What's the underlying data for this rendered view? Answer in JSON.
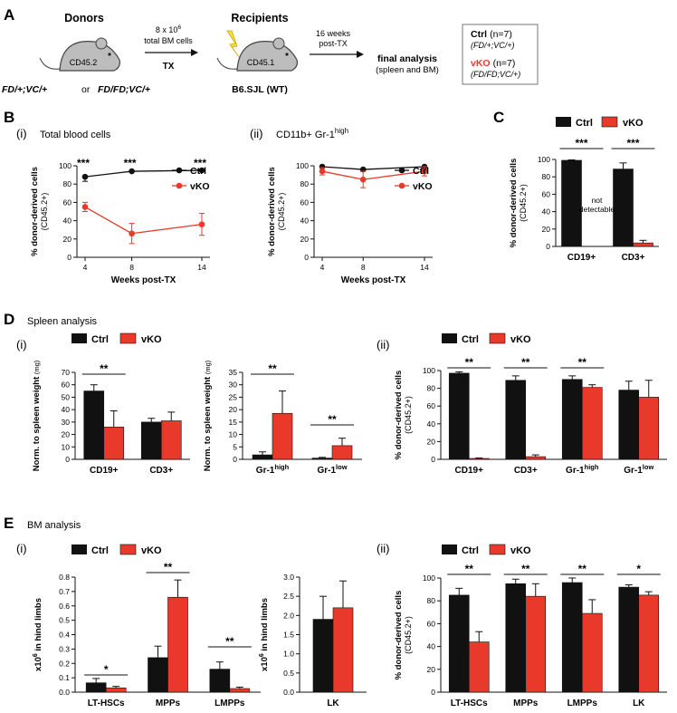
{
  "colors": {
    "ctrl": "#111111",
    "vko": "#e8392b"
  },
  "panels": {
    "A": "A",
    "B": "B",
    "C": "C",
    "D": "D",
    "E": "E"
  },
  "schematic": {
    "donors_title": "Donors",
    "donor_label": "CD45.2",
    "donor_genotype_1": "FD/+;VC/+",
    "donor_genotype_or": "or",
    "donor_genotype_2": "FD/FD;VC/+",
    "cells_line1": "8 x 10",
    "cells_exp": "6",
    "cells_line2": "total BM cells",
    "tx_label": "TX",
    "recipients_title": "Recipients",
    "recipient_label": "CD45.1",
    "recipient_strain": "B6.SJL (WT)",
    "weeks_line1": "16 weeks",
    "weeks_line2": "post-TX",
    "final_line1": "final analysis",
    "final_line2": "(spleen and BM)",
    "legend_ctrl": "Ctrl",
    "legend_ctrl_n": "(n=7)",
    "legend_ctrl_geno": "(FD/+;VC/+)",
    "legend_vko": "vKO",
    "legend_vko_n": "(n=7)",
    "legend_vko_geno": "(FD/FD;VC/+)"
  },
  "section_titles": {
    "B_i_roman": "(i)",
    "B_i": "Total blood cells",
    "B_ii_roman": "(ii)",
    "B_ii_a": "CD11b+  Gr-1",
    "B_ii_sup": "high",
    "D_title": "Spleen analysis",
    "E_title": "BM analysis",
    "D_i": "(i)",
    "D_ii": "(ii)",
    "E_i": "(i)",
    "E_ii": "(ii)"
  },
  "legend": {
    "ctrl": "Ctrl",
    "vko": "vKO"
  },
  "chart_data": [
    {
      "id": "B-i",
      "type": "line",
      "title": "Total blood cells",
      "xlabel": "Weeks post-TX",
      "ylabel": "% donor-derived cells",
      "ylabel2": "(CD45.2+)",
      "x": [
        4,
        8,
        14
      ],
      "ylim": [
        0,
        100
      ],
      "yticks": [
        "0",
        "20",
        "40",
        "60",
        "80",
        "100"
      ],
      "xticks": [
        "4",
        "8",
        "14"
      ],
      "series": [
        {
          "name": "Ctrl",
          "values": [
            88,
            94,
            95
          ],
          "errors": [
            5,
            1,
            1
          ]
        },
        {
          "name": "vKO",
          "values": [
            55,
            26,
            36
          ],
          "errors": [
            5,
            11,
            12
          ]
        }
      ],
      "annotations": [
        "***",
        "***",
        "***"
      ]
    },
    {
      "id": "B-ii",
      "type": "line",
      "xlabel": "Weeks post-TX",
      "ylabel": "% donor-derived cells",
      "ylabel2": "(CD45.2+)",
      "x": [
        4,
        8,
        14
      ],
      "ylim": [
        0,
        100
      ],
      "yticks": [
        "0",
        "20",
        "40",
        "60",
        "80",
        "100"
      ],
      "xticks": [
        "4",
        "8",
        "14"
      ],
      "series": [
        {
          "name": "Ctrl",
          "values": [
            99,
            96,
            99
          ],
          "errors": [
            1,
            2,
            1
          ]
        },
        {
          "name": "vKO",
          "values": [
            94,
            85,
            94
          ],
          "errors": [
            4,
            9,
            5
          ]
        }
      ]
    },
    {
      "id": "C",
      "type": "bar",
      "ylabel": "% donor-derived cells",
      "ylabel2": "(CD45.2+)",
      "categories": [
        "CD19+",
        "CD3+"
      ],
      "ylim": [
        0,
        100
      ],
      "yticks": [
        "0",
        "20",
        "40",
        "60",
        "80",
        "100"
      ],
      "series": [
        {
          "name": "Ctrl",
          "values": [
            99,
            89
          ],
          "errors": [
            0.5,
            7
          ]
        },
        {
          "name": "vKO",
          "values": [
            0,
            4
          ],
          "errors": [
            0,
            3
          ]
        }
      ],
      "annotations": [
        "***",
        "***"
      ],
      "note_line1": "not",
      "note_line2": "detectable"
    },
    {
      "id": "D-i-a",
      "type": "bar",
      "ylabel": "Norm. to spleen weight",
      "ylabel_unit": "(mg)",
      "categories": [
        "CD19+",
        "CD3+"
      ],
      "ylim": [
        0,
        70
      ],
      "yticks": [
        "0",
        "10",
        "20",
        "30",
        "40",
        "50",
        "60",
        "70"
      ],
      "series": [
        {
          "name": "Ctrl",
          "values": [
            55,
            30
          ],
          "errors": [
            5,
            3
          ]
        },
        {
          "name": "vKO",
          "values": [
            26,
            31
          ],
          "errors": [
            13,
            7
          ]
        }
      ],
      "annotations": [
        "**"
      ]
    },
    {
      "id": "D-i-b",
      "type": "bar",
      "ylabel": "Norm. to spleen weight",
      "ylabel_unit": "(mg)",
      "categories": [
        "Gr-1",
        "Gr-1"
      ],
      "category_sup": [
        "high",
        "low"
      ],
      "ylim": [
        0,
        35
      ],
      "yticks": [
        "0",
        "5",
        "10",
        "15",
        "20",
        "25",
        "30",
        "35"
      ],
      "series": [
        {
          "name": "Ctrl",
          "values": [
            1.8,
            0.5
          ],
          "errors": [
            1.2,
            0.3
          ]
        },
        {
          "name": "vKO",
          "values": [
            18.5,
            5.5
          ],
          "errors": [
            9,
            3
          ]
        }
      ],
      "annotations": [
        "**",
        "**"
      ]
    },
    {
      "id": "D-ii",
      "type": "bar",
      "ylabel": "% donor-derived cells",
      "ylabel2": "(CD45.2+)",
      "categories": [
        "CD19+",
        "CD3+",
        "Gr-1",
        "Gr-1"
      ],
      "category_sup": [
        "",
        "",
        "high",
        "low"
      ],
      "ylim": [
        0,
        100
      ],
      "yticks": [
        "0",
        "20",
        "40",
        "60",
        "80",
        "100"
      ],
      "series": [
        {
          "name": "Ctrl",
          "values": [
            97,
            89,
            90,
            78
          ],
          "errors": [
            1.5,
            5,
            4,
            10
          ]
        },
        {
          "name": "vKO",
          "values": [
            1,
            3,
            81,
            70
          ],
          "errors": [
            0.5,
            2,
            3,
            19
          ]
        }
      ],
      "annotations": [
        "**",
        "**",
        "**"
      ]
    },
    {
      "id": "E-i-a",
      "type": "bar",
      "ylabel": "x10",
      "ylabel_sup": "6",
      "ylabel_rest": " in hind limbs",
      "categories": [
        "LT-HSCs",
        "MPPs",
        "LMPPs"
      ],
      "ylim": [
        0,
        0.8
      ],
      "yticks": [
        "0.0",
        "0.1",
        "0.2",
        "0.3",
        "0.4",
        "0.5",
        "0.6",
        "0.7",
        "0.8"
      ],
      "series": [
        {
          "name": "Ctrl",
          "values": [
            0.065,
            0.24,
            0.16
          ],
          "errors": [
            0.03,
            0.08,
            0.05
          ]
        },
        {
          "name": "vKO",
          "values": [
            0.03,
            0.66,
            0.025
          ],
          "errors": [
            0.01,
            0.12,
            0.01
          ]
        }
      ],
      "annotations": [
        "*",
        "**",
        "**"
      ]
    },
    {
      "id": "E-i-b",
      "type": "bar",
      "ylabel": "x10",
      "ylabel_sup": "6",
      "ylabel_rest": " in hind limbs",
      "categories": [
        "LK"
      ],
      "ylim": [
        0,
        3.0
      ],
      "yticks": [
        "0.0",
        "0.5",
        "1.0",
        "1.5",
        "2.0",
        "2.5",
        "3.0"
      ],
      "series": [
        {
          "name": "Ctrl",
          "values": [
            1.9
          ],
          "errors": [
            0.6
          ]
        },
        {
          "name": "vKO",
          "values": [
            2.2
          ],
          "errors": [
            0.7
          ]
        }
      ]
    },
    {
      "id": "E-ii",
      "type": "bar",
      "ylabel": "% donor-derived cells",
      "ylabel2": "(CD45.2+)",
      "categories": [
        "LT-HSCs",
        "MPPs",
        "LMPPs",
        "LK"
      ],
      "ylim": [
        0,
        100
      ],
      "yticks": [
        "0",
        "20",
        "40",
        "60",
        "80",
        "100"
      ],
      "series": [
        {
          "name": "Ctrl",
          "values": [
            85,
            95,
            96,
            92
          ],
          "errors": [
            6,
            4,
            4,
            2
          ]
        },
        {
          "name": "vKO",
          "values": [
            44,
            84,
            69,
            85
          ],
          "errors": [
            9,
            11,
            12,
            3
          ]
        }
      ],
      "annotations": [
        "**",
        "**",
        "**",
        "*"
      ]
    }
  ]
}
